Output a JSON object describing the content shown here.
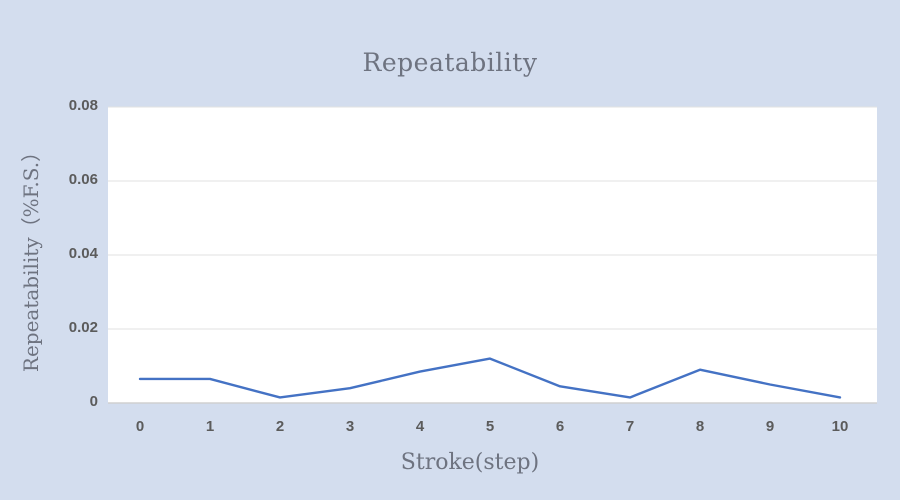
{
  "chart_data": {
    "type": "line",
    "title": "Repeatability",
    "xlabel": "Stroke(step)",
    "ylabel": "Repeatability（%F.S.）",
    "x": [
      0,
      1,
      2,
      3,
      4,
      5,
      6,
      7,
      8,
      9,
      10
    ],
    "x_tick_labels": [
      "0",
      "1",
      "2",
      "3",
      "4",
      "5",
      "6",
      "7",
      "8",
      "9",
      "10"
    ],
    "series": [
      {
        "name": "Repeatability",
        "values": [
          0.0065,
          0.0065,
          0.0015,
          0.004,
          0.0085,
          0.012,
          0.0045,
          0.0015,
          0.009,
          0.005,
          0.0015
        ]
      }
    ],
    "ylim": [
      0,
      0.08
    ],
    "y_ticks": [
      0,
      0.02,
      0.04,
      0.06,
      0.08
    ],
    "y_tick_labels": [
      "0",
      "0.02",
      "0.04",
      "0.06",
      "0.08"
    ],
    "grid": true,
    "legend": "none",
    "colors": {
      "line": "#4472c4",
      "background": "#d3ddee",
      "plot_background": "#ffffff",
      "gridline": "#e2e2e2",
      "axis_line": "#d0d0d0",
      "tick_text": "#5b5b5b",
      "title_text": "#6e7380"
    }
  }
}
